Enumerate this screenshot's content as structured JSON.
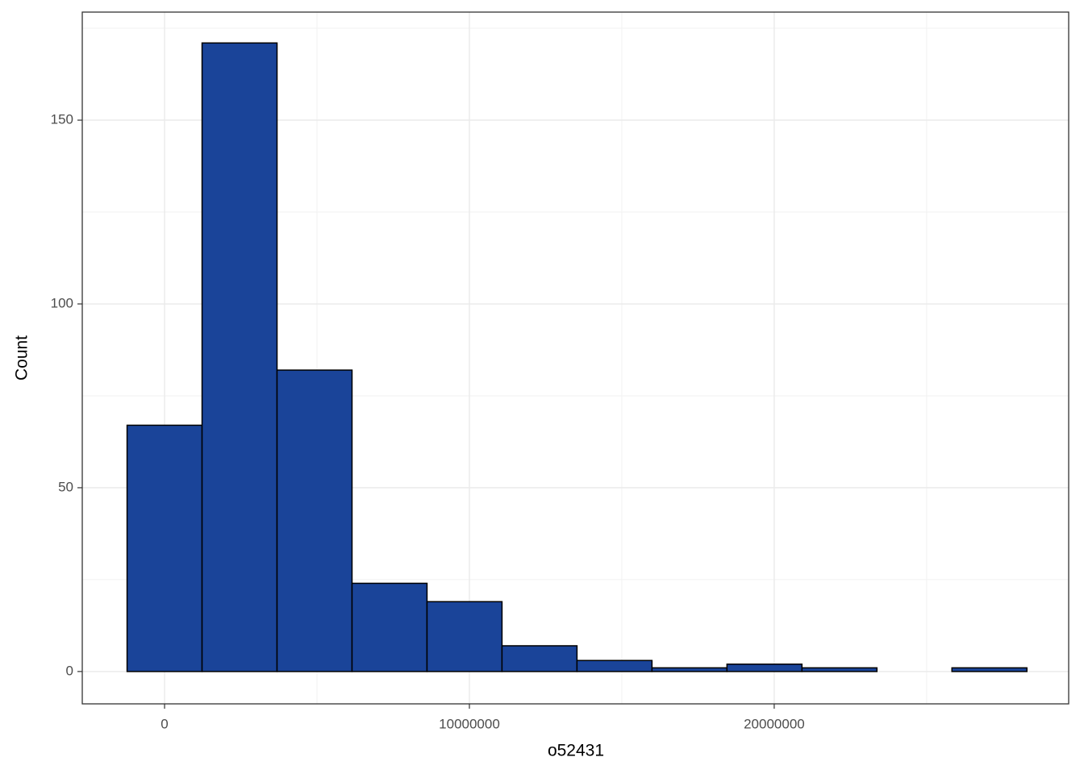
{
  "chart_data": {
    "type": "histogram",
    "x_label": "o52431",
    "y_label": "Count",
    "bins": [
      -1230000,
      1230000,
      3690000,
      6150000,
      8610000,
      11070000,
      13530000,
      15990000,
      18450000,
      20910000,
      23370000,
      25830000,
      28290000
    ],
    "values": [
      67,
      171,
      82,
      24,
      19,
      7,
      3,
      1,
      2,
      1,
      0,
      1
    ],
    "color": "#1a4499",
    "edge_color": "#000000",
    "xlim": [
      -2700000,
      29660000
    ],
    "ylim": [
      -8.8,
      179.4
    ],
    "xticks": [
      0,
      10000000,
      20000000
    ],
    "yticks": [
      0,
      50,
      100,
      150
    ],
    "grid": true
  }
}
